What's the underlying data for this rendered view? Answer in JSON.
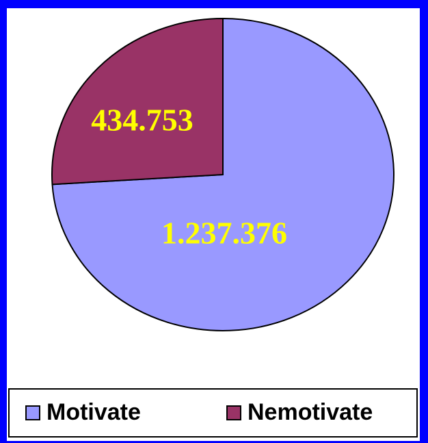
{
  "chart_data": {
    "type": "pie",
    "categories": [
      "Motivate",
      "Nemotivate"
    ],
    "values": [
      1237376,
      434753
    ],
    "value_labels": [
      "1.237.376",
      "434.753"
    ],
    "colors": [
      "#9999ff",
      "#993366"
    ],
    "legend": "bottom"
  }
}
